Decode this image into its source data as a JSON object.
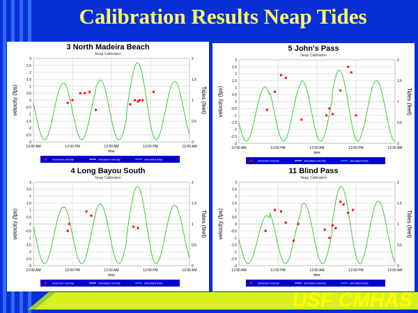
{
  "slide": {
    "title": "Calibration Results Neap Tides",
    "footer": "USF CMHAS",
    "colors": {
      "background": "#0a2fd6",
      "title": "#ffff66",
      "footer": "#ffff00",
      "modeled_tide": "#33cc33",
      "observed": "#ff0000",
      "legend_bg": "#0000cc"
    }
  },
  "chart_data": [
    {
      "type": "line",
      "title": "3 North Madeira Beach",
      "subtitle": "Neap Calibration",
      "ylabel": "velocity (fps)",
      "y2label": "Tides (feet)",
      "xlabel": "time",
      "ylim": [
        -3,
        3
      ],
      "y2lim": [
        0,
        2
      ],
      "yticks": [
        "3",
        "2.5",
        "2",
        "1.5",
        "1",
        "0.5",
        "0",
        "-0.5",
        "-1",
        "-1.5",
        "-2",
        "-2.5",
        "-3"
      ],
      "y2ticks": [
        "2",
        "1.5",
        "1",
        "0.5",
        "0"
      ],
      "xticks": [
        "12:00 AM",
        "12:00 PM",
        "12:00 AM",
        "12:00 PM",
        "12:00 AM"
      ],
      "legend": [
        "observed velocity",
        "simulated velocity",
        "simulated tides"
      ],
      "tide_series": {
        "name": "simulated tides",
        "troughs": 0.05,
        "peaks": [
          1.4,
          1.43,
          1.48,
          1.9,
          1.45
        ],
        "phase": 0.55
      },
      "observed": {
        "x": [
          0.22,
          0.25,
          0.3,
          0.33,
          0.36,
          0.4,
          0.62,
          0.65,
          0.67,
          0.68,
          0.7,
          0.77
        ],
        "y": [
          -0.2,
          0.0,
          0.5,
          0.5,
          0.6,
          -0.7,
          -0.3,
          0.0,
          -0.1,
          0.0,
          0.0,
          0.6
        ]
      }
    },
    {
      "type": "line",
      "title": "5 John's Pass",
      "subtitle": "Neap Calibration",
      "ylabel": "velocity (fps)",
      "y2label": "Tides (feet)",
      "xlabel": "time",
      "ylim": [
        -3,
        3
      ],
      "y2lim": [
        0,
        2
      ],
      "yticks": [
        "3",
        "2.5",
        "2",
        "1.5",
        "1",
        "0.5",
        "0",
        "-0.5",
        "-1",
        "-1.5",
        "-2",
        "-2.5",
        "-3"
      ],
      "y2ticks": [
        "2",
        "1.5",
        "1",
        "0.5",
        "0"
      ],
      "xticks": [
        "12:00 AM",
        "12:00 PM",
        "12:00 AM",
        "12:00 PM",
        "12:00 AM"
      ],
      "legend": [
        "observed velocity",
        "simulated velocity",
        "simulated tides"
      ],
      "tide_series": {
        "name": "simulated tides",
        "troughs": 0.05,
        "peaks": [
          1.35,
          1.45,
          1.5,
          1.75,
          1.5
        ],
        "phase": 0.45
      },
      "observed": {
        "x": [
          0.18,
          0.23,
          0.27,
          0.3,
          0.4,
          0.56,
          0.58,
          0.6,
          0.65,
          0.7,
          0.72,
          0.75
        ],
        "y": [
          -0.6,
          0.7,
          1.9,
          1.7,
          -1.3,
          -1.0,
          -0.5,
          -0.9,
          0.8,
          2.5,
          2.1,
          -1.0
        ]
      }
    },
    {
      "type": "line",
      "title": "4 Long Bayou South",
      "subtitle": "Neap Calibration",
      "ylabel": "velocity (fps)",
      "y2label": "Tides (feet)",
      "xlabel": "time",
      "ylim": [
        -3,
        3
      ],
      "y2lim": [
        0,
        2
      ],
      "yticks": [
        "3",
        "2.5",
        "2",
        "1.5",
        "1",
        "0.5",
        "0",
        "-0.5",
        "-1",
        "-1.5",
        "-2",
        "-2.5",
        "-3"
      ],
      "y2ticks": [
        "2",
        "1.5",
        "1",
        "0.5",
        "0"
      ],
      "xticks": [
        "12:00 AM",
        "12:00 PM",
        "12:00 AM",
        "12:00 PM",
        "12:00 AM"
      ],
      "legend": [
        "observed velocity",
        "simulated velocity",
        "simulated tides"
      ],
      "tide_series": {
        "name": "simulated tides",
        "troughs": 0.05,
        "peaks": [
          1.4,
          1.43,
          1.48,
          1.9,
          1.45
        ],
        "phase": 0.55
      },
      "observed": {
        "x": [
          0.22,
          0.23,
          0.34,
          0.37,
          0.64,
          0.67
        ],
        "y": [
          -0.5,
          0.0,
          0.9,
          0.6,
          -0.2,
          -0.3
        ]
      }
    },
    {
      "type": "line",
      "title": "11 Blind Pass",
      "subtitle": "Neap Calibration",
      "ylabel": "velocity (fps)",
      "y2label": "Tides (feet)",
      "xlabel": "time",
      "ylim": [
        -3,
        3
      ],
      "y2lim": [
        0,
        2
      ],
      "yticks": [
        "3",
        "2.5",
        "2",
        "1.5",
        "1",
        "0.5",
        "0",
        "-0.5",
        "-1",
        "-1.5",
        "-2",
        "-2.5",
        "-3"
      ],
      "y2ticks": [
        "2",
        "1.5",
        "1",
        "0.5",
        "0"
      ],
      "xticks": [
        "12:00 AM",
        "12:00 PM",
        "12:00 AM",
        "12:00 PM",
        "12:00 AM"
      ],
      "legend": [
        "observed velocity",
        "simulated velocity",
        "simulated tides"
      ],
      "tide_series": {
        "name": "simulated tides",
        "troughs": 0.05,
        "peaks": [
          1.2,
          1.35,
          1.5,
          1.9,
          1.55
        ],
        "phase": 0.5
      },
      "observed": {
        "x": [
          0.17,
          0.23,
          0.27,
          0.3,
          0.35,
          0.38,
          0.55,
          0.58,
          0.6,
          0.62,
          0.65,
          0.67,
          0.7,
          0.73
        ],
        "y": [
          -0.5,
          1.0,
          0.9,
          0.1,
          -1.2,
          0.0,
          -0.4,
          -1.0,
          -0.1,
          -0.3,
          1.6,
          1.4,
          0.8,
          1.0
        ]
      }
    }
  ]
}
